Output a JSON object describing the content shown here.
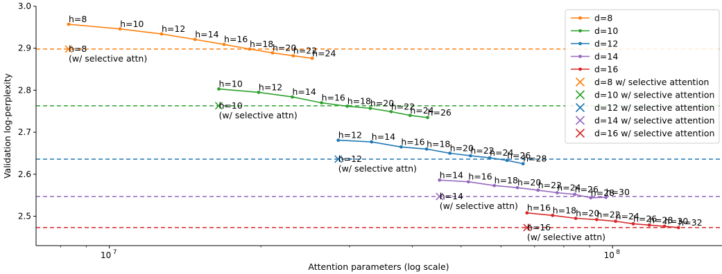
{
  "chart_data": {
    "type": "line",
    "xlabel": "Attention parameters (log scale)",
    "ylabel": "Validation log-perplexity",
    "xscale": "log",
    "xlim": [
      7150000,
      165000000
    ],
    "ylim": [
      2.43,
      3.0
    ],
    "y_ticks": [
      2.5,
      2.6,
      2.7,
      2.8,
      2.9,
      3.0
    ],
    "y_tick_labels": [
      "2.5",
      "2.6",
      "2.7",
      "2.8",
      "2.9",
      "3.0"
    ],
    "x_major_ticks": [
      10000000,
      100000000
    ],
    "x_major_tick_labels": [
      {
        "base": "10",
        "exp": "7"
      },
      {
        "base": "10",
        "exp": "8"
      }
    ],
    "x_minor_ticks": [
      8000000,
      9000000,
      20000000,
      30000000,
      40000000,
      50000000,
      60000000,
      70000000,
      80000000,
      90000000
    ],
    "grid": false,
    "legend_position": "top-right",
    "selective_sublabel": "(w/ selective attn)",
    "series": [
      {
        "name": "d=8",
        "color": "#ff7f0e",
        "selective_name": "d=8 w/ selective attention",
        "baseline": 2.898,
        "selective_point": {
          "x": 8300000,
          "label": "h=8"
        },
        "points": [
          {
            "x": 8300000,
            "y": 2.957,
            "label": "h=8"
          },
          {
            "x": 10500000,
            "y": 2.946,
            "label": "h=10"
          },
          {
            "x": 12700000,
            "y": 2.934,
            "label": "h=12"
          },
          {
            "x": 14800000,
            "y": 2.921,
            "label": "h=14"
          },
          {
            "x": 16900000,
            "y": 2.909,
            "label": "h=16"
          },
          {
            "x": 19000000,
            "y": 2.898,
            "label": "h=18"
          },
          {
            "x": 21100000,
            "y": 2.889,
            "label": "h=20"
          },
          {
            "x": 23200000,
            "y": 2.882,
            "label": "h=22"
          },
          {
            "x": 25300000,
            "y": 2.876,
            "label": "h=24"
          }
        ]
      },
      {
        "name": "d=10",
        "color": "#2ca02c",
        "selective_name": "d=10 w/ selective attention",
        "baseline": 2.763,
        "selective_point": {
          "x": 16500000,
          "label": "h=10"
        },
        "points": [
          {
            "x": 16500000,
            "y": 2.803,
            "label": "h=10"
          },
          {
            "x": 19800000,
            "y": 2.795,
            "label": "h=12"
          },
          {
            "x": 23100000,
            "y": 2.784,
            "label": "h=14"
          },
          {
            "x": 26400000,
            "y": 2.77,
            "label": "h=16"
          },
          {
            "x": 29700000,
            "y": 2.762,
            "label": "h=18"
          },
          {
            "x": 33000000,
            "y": 2.757,
            "label": "h=20"
          },
          {
            "x": 36300000,
            "y": 2.749,
            "label": "h=22"
          },
          {
            "x": 39600000,
            "y": 2.74,
            "label": "h=24"
          },
          {
            "x": 42900000,
            "y": 2.735,
            "label": "h=26"
          }
        ]
      },
      {
        "name": "d=12",
        "color": "#1f77b4",
        "selective_name": "d=12 w/ selective attention",
        "baseline": 2.636,
        "selective_point": {
          "x": 28500000,
          "label": "h=12"
        },
        "points": [
          {
            "x": 28500000,
            "y": 2.681,
            "label": "h=12"
          },
          {
            "x": 33200000,
            "y": 2.677,
            "label": "h=14"
          },
          {
            "x": 38000000,
            "y": 2.665,
            "label": "h=16"
          },
          {
            "x": 42700000,
            "y": 2.66,
            "label": "h=18"
          },
          {
            "x": 47500000,
            "y": 2.65,
            "label": "h=20"
          },
          {
            "x": 52200000,
            "y": 2.644,
            "label": "h=22"
          },
          {
            "x": 57000000,
            "y": 2.639,
            "label": "h=24"
          },
          {
            "x": 61700000,
            "y": 2.633,
            "label": "h=26"
          },
          {
            "x": 66400000,
            "y": 2.625,
            "label": "h=28"
          }
        ]
      },
      {
        "name": "d=14",
        "color": "#9467bd",
        "selective_name": "d=14 w/ selective attention",
        "baseline": 2.547,
        "selective_point": {
          "x": 45300000,
          "label": "h=14"
        },
        "points": [
          {
            "x": 45300000,
            "y": 2.586,
            "label": "h=14"
          },
          {
            "x": 51700000,
            "y": 2.582,
            "label": "h=16"
          },
          {
            "x": 58200000,
            "y": 2.573,
            "label": "h=18"
          },
          {
            "x": 64700000,
            "y": 2.568,
            "label": "h=20"
          },
          {
            "x": 71100000,
            "y": 2.562,
            "label": "h=22"
          },
          {
            "x": 77600000,
            "y": 2.556,
            "label": "h=24"
          },
          {
            "x": 84100000,
            "y": 2.552,
            "label": "h=26"
          },
          {
            "x": 90500000,
            "y": 2.544,
            "label": "h=28"
          },
          {
            "x": 97000000,
            "y": 2.545,
            "label": "h=30"
          }
        ]
      },
      {
        "name": "d=16",
        "color": "#d62728",
        "selective_name": "d=16 w/ selective attention",
        "baseline": 2.473,
        "selective_point": {
          "x": 67600000,
          "label": "h=16"
        },
        "points": [
          {
            "x": 67600000,
            "y": 2.508,
            "label": "h=16"
          },
          {
            "x": 76000000,
            "y": 2.502,
            "label": "h=18"
          },
          {
            "x": 84500000,
            "y": 2.495,
            "label": "h=20"
          },
          {
            "x": 93000000,
            "y": 2.492,
            "label": "h=22"
          },
          {
            "x": 101400000,
            "y": 2.488,
            "label": "h=24"
          },
          {
            "x": 109900000,
            "y": 2.482,
            "label": "h=26"
          },
          {
            "x": 118300000,
            "y": 2.479,
            "label": "h=28"
          },
          {
            "x": 126800000,
            "y": 2.476,
            "label": "h=30"
          },
          {
            "x": 135200000,
            "y": 2.473,
            "label": "h=32"
          }
        ]
      }
    ]
  }
}
